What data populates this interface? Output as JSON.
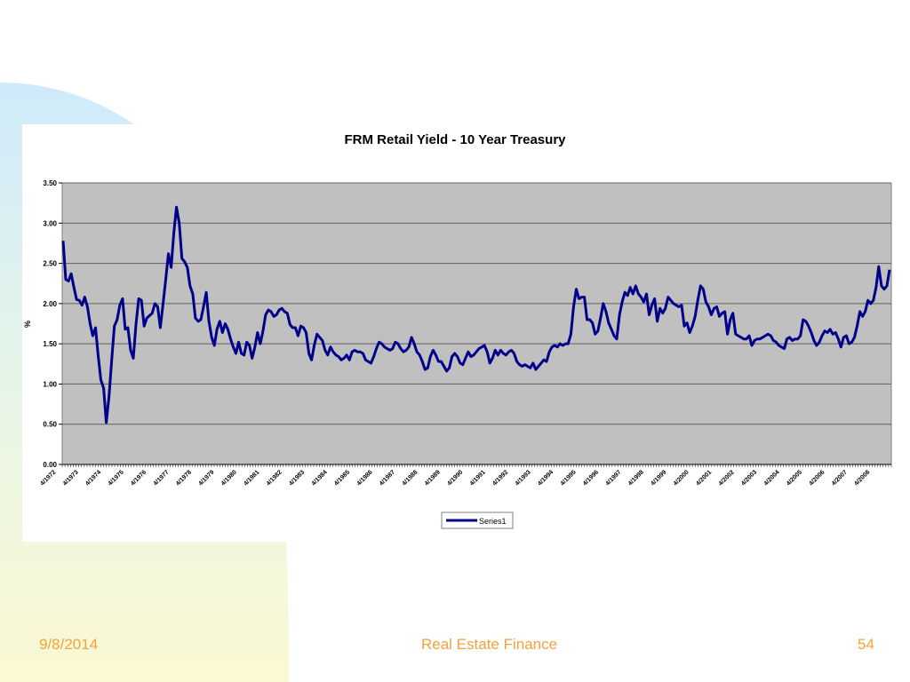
{
  "footer": {
    "date": "9/8/2014",
    "title": "Real Estate Finance",
    "page": "54"
  },
  "colors": {
    "line": "#00008b",
    "plot_bg": "#c0c0c0",
    "footer_text": "#f4a23b",
    "bg_blue": "#cfeafb",
    "bg_yellow": "#fbf9d3"
  },
  "chart_data": {
    "type": "line",
    "title": "FRM Retail Yield - 10 Year Treasury",
    "xlabel": "",
    "ylabel": "%",
    "ylim": [
      0,
      3.5
    ],
    "yticks": [
      "0.00",
      "0.50",
      "1.00",
      "1.50",
      "2.00",
      "2.50",
      "3.00",
      "3.50"
    ],
    "x_tick_labels": [
      "4/1972",
      "4/1973",
      "4/1974",
      "4/1975",
      "4/1976",
      "4/1977",
      "4/1978",
      "4/1979",
      "4/1980",
      "4/1981",
      "4/1982",
      "4/1983",
      "4/1984",
      "4/1985",
      "4/1986",
      "4/1987",
      "4/1988",
      "4/1989",
      "4/1990",
      "4/1991",
      "4/1992",
      "4/1993",
      "4/1994",
      "4/1995",
      "4/1996",
      "4/1997",
      "4/1998",
      "4/1999",
      "4/2000",
      "4/2001",
      "4/2002",
      "4/2003",
      "4/2004",
      "4/2005",
      "4/2006",
      "4/2007",
      "4/2008"
    ],
    "grid": true,
    "legend_position": "bottom",
    "series": [
      {
        "name": "Series1",
        "values": [
          2.78,
          2.3,
          2.28,
          2.37,
          2.2,
          2.05,
          2.04,
          1.98,
          2.08,
          1.96,
          1.75,
          1.6,
          1.7,
          1.35,
          1.05,
          0.95,
          0.52,
          0.85,
          1.3,
          1.72,
          1.8,
          1.98,
          2.06,
          1.68,
          1.7,
          1.42,
          1.32,
          1.75,
          2.06,
          2.04,
          1.72,
          1.82,
          1.85,
          1.88,
          2.0,
          1.96,
          1.7,
          2.0,
          2.3,
          2.62,
          2.45,
          2.88,
          3.2,
          3.0,
          2.56,
          2.52,
          2.45,
          2.22,
          2.12,
          1.82,
          1.78,
          1.8,
          1.96,
          2.14,
          1.78,
          1.58,
          1.48,
          1.68,
          1.78,
          1.64,
          1.75,
          1.68,
          1.56,
          1.46,
          1.38,
          1.52,
          1.38,
          1.36,
          1.52,
          1.48,
          1.32,
          1.46,
          1.64,
          1.5,
          1.66,
          1.86,
          1.92,
          1.9,
          1.84,
          1.86,
          1.92,
          1.94,
          1.9,
          1.88,
          1.74,
          1.7,
          1.7,
          1.6,
          1.72,
          1.7,
          1.64,
          1.38,
          1.3,
          1.48,
          1.62,
          1.58,
          1.54,
          1.42,
          1.36,
          1.46,
          1.4,
          1.36,
          1.34,
          1.3,
          1.32,
          1.36,
          1.3,
          1.4,
          1.42,
          1.4,
          1.4,
          1.38,
          1.3,
          1.28,
          1.26,
          1.34,
          1.44,
          1.52,
          1.5,
          1.46,
          1.44,
          1.42,
          1.44,
          1.52,
          1.5,
          1.44,
          1.4,
          1.42,
          1.46,
          1.58,
          1.5,
          1.4,
          1.36,
          1.28,
          1.18,
          1.2,
          1.34,
          1.42,
          1.36,
          1.28,
          1.28,
          1.22,
          1.16,
          1.2,
          1.34,
          1.38,
          1.34,
          1.26,
          1.24,
          1.32,
          1.4,
          1.34,
          1.36,
          1.4,
          1.44,
          1.46,
          1.48,
          1.4,
          1.26,
          1.32,
          1.42,
          1.36,
          1.42,
          1.38,
          1.36,
          1.4,
          1.42,
          1.38,
          1.28,
          1.24,
          1.22,
          1.24,
          1.22,
          1.2,
          1.26,
          1.18,
          1.22,
          1.26,
          1.3,
          1.28,
          1.4,
          1.46,
          1.48,
          1.46,
          1.5,
          1.48,
          1.5,
          1.5,
          1.62,
          1.96,
          2.18,
          2.06,
          2.08,
          2.08,
          1.8,
          1.8,
          1.76,
          1.62,
          1.66,
          1.82,
          2.0,
          1.9,
          1.76,
          1.68,
          1.6,
          1.56,
          1.86,
          2.02,
          2.14,
          2.1,
          2.2,
          2.12,
          2.22,
          2.12,
          2.08,
          2.02,
          2.12,
          1.86,
          1.98,
          2.06,
          1.78,
          1.94,
          1.88,
          1.94,
          2.08,
          2.04,
          2.0,
          1.98,
          1.96,
          1.98,
          1.72,
          1.76,
          1.64,
          1.72,
          1.84,
          2.04,
          2.22,
          2.18,
          2.02,
          1.96,
          1.86,
          1.94,
          1.96,
          1.84,
          1.88,
          1.9,
          1.62,
          1.8,
          1.88,
          1.62,
          1.6,
          1.58,
          1.56,
          1.56,
          1.6,
          1.48,
          1.54,
          1.56,
          1.56,
          1.58,
          1.6,
          1.62,
          1.6,
          1.54,
          1.52,
          1.48,
          1.46,
          1.44,
          1.56,
          1.58,
          1.54,
          1.56,
          1.56,
          1.6,
          1.8,
          1.78,
          1.72,
          1.64,
          1.54,
          1.48,
          1.52,
          1.6,
          1.66,
          1.64,
          1.68,
          1.62,
          1.64,
          1.56,
          1.46,
          1.58,
          1.6,
          1.5,
          1.52,
          1.58,
          1.72,
          1.9,
          1.84,
          1.9,
          2.04,
          2.0,
          2.04,
          2.2,
          2.46,
          2.22,
          2.18,
          2.22,
          2.42
        ]
      }
    ]
  }
}
